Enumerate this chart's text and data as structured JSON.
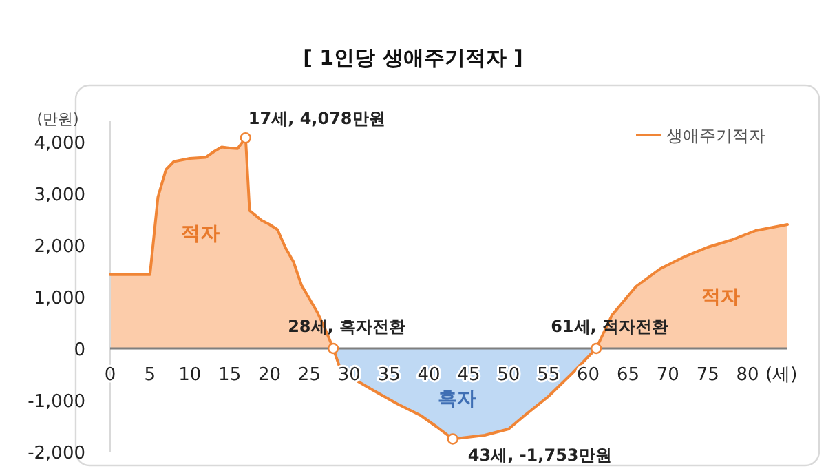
{
  "chart_data": {
    "type": "area",
    "title": "[ 1인당 생애주기적자 ]",
    "ylabel": "(만원)",
    "xlabel": "(세)",
    "xlim": [
      0,
      85
    ],
    "xticks": [
      0,
      5,
      10,
      15,
      20,
      25,
      30,
      35,
      40,
      45,
      50,
      55,
      60,
      65,
      70,
      75,
      80
    ],
    "ylim": [
      -2000,
      4400
    ],
    "yticks": [
      {
        "value": -2000,
        "label": "-2,000"
      },
      {
        "value": -1000,
        "label": "-1,000"
      },
      0,
      {
        "value": 1000,
        "label": "1,000"
      },
      {
        "value": 2000,
        "label": "2,000"
      },
      {
        "value": 3000,
        "label": "3,000"
      },
      {
        "value": 4000,
        "label": "4,000"
      }
    ],
    "grid": false,
    "legend": "top right",
    "series": [
      {
        "name": "생애주기적자",
        "color": "#f08536",
        "colors": [
          "#fcccaa",
          "#fcccaa",
          "#fcccaa",
          "#fcccaa",
          "#fcccaa",
          "#fcccaa",
          "#fcccaa",
          "#fcccaa",
          "#fcccaa",
          "#fcccaa",
          "#fcccaa",
          "#fcccaa",
          "#fcccaa",
          "#fcccaa",
          "#fcccaa",
          "#fcccaa",
          "#fcccaa",
          "#fcccaa",
          "#fcccaa",
          "#fcccaa",
          "#fcccaa",
          "#fcccaa",
          "#bfd9f4",
          "#bfd9f4",
          "#bfd9f4",
          "#bfd9f4",
          "#bfd9f4",
          "#bfd9f4",
          "#bfd9f4",
          "#bfd9f4",
          "#bfd9f4",
          "#bfd9f4",
          "#bfd9f4",
          "#fcccaa",
          "#fcccaa",
          "#fcccaa",
          "#fcccaa",
          "#fcccaa",
          "#fcccaa",
          "#fcccaa",
          "#fcccaa",
          "#fcccaa"
        ],
        "x": [
          0,
          5,
          6,
          7,
          8,
          10,
          12,
          13,
          14,
          15,
          16,
          17,
          17.5,
          19,
          20,
          21,
          22,
          23,
          24,
          26,
          27,
          28,
          29,
          33,
          36,
          39,
          41,
          43,
          47,
          50,
          52,
          55,
          58,
          61,
          63,
          66,
          69,
          72,
          75,
          78,
          81,
          85
        ],
        "values": [
          1430,
          1430,
          2930,
          3460,
          3620,
          3680,
          3700,
          3810,
          3900,
          3880,
          3870,
          4078,
          2670,
          2480,
          2400,
          2300,
          1950,
          1680,
          1230,
          700,
          370,
          0,
          -450,
          -810,
          -1070,
          -1300,
          -1520,
          -1753,
          -1680,
          -1560,
          -1300,
          -930,
          -480,
          0,
          650,
          1200,
          1540,
          1770,
          1960,
          2100,
          2280,
          2400
        ]
      }
    ],
    "annotations": [
      {
        "text": "17세, 4,078만원",
        "x": 17,
        "y": 4078
      },
      {
        "text": "28세, 흑자전환",
        "x": 28,
        "y": 0
      },
      {
        "text": "61세, 적자전환",
        "x": 61,
        "y": 0
      },
      {
        "text": "43세, -1,753만원",
        "x": 43,
        "y": -1753
      },
      "적자",
      "흑자",
      "적자"
    ]
  }
}
